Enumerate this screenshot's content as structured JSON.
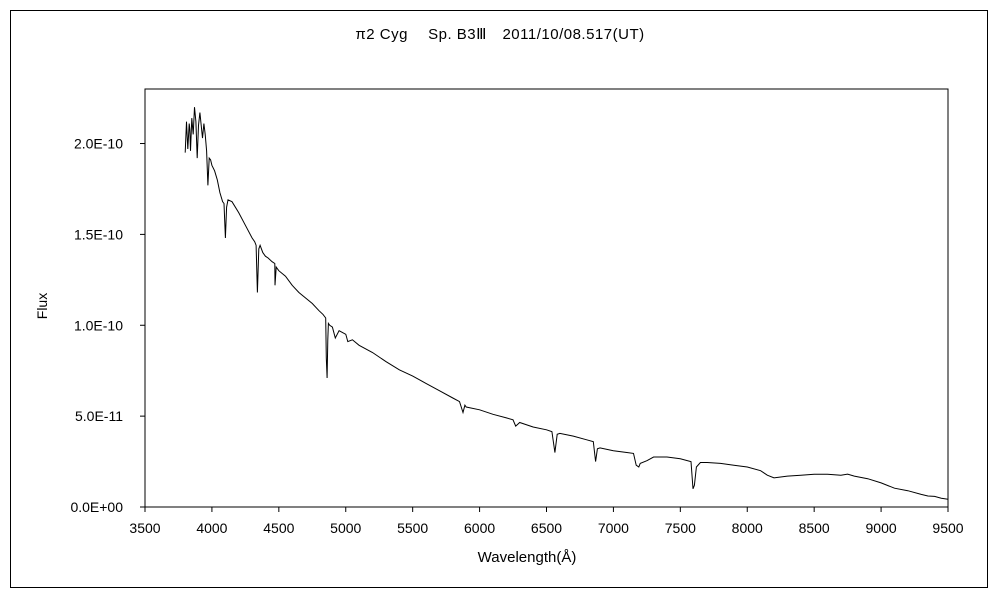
{
  "chart_data": {
    "type": "line",
    "title": "π2 Cyg　 Sp. B3Ⅲ　2011/10/08.517(UT)",
    "xlabel": "Wavelength(Å)",
    "ylabel": "Flux",
    "xlim": [
      3500,
      9500
    ],
    "ylim": [
      0,
      2.3e-10
    ],
    "xticks": [
      3500,
      4000,
      4500,
      5000,
      5500,
      6000,
      6500,
      7000,
      7500,
      8000,
      8500,
      9000,
      9500
    ],
    "xtick_labels": [
      "3500",
      "4000",
      "4500",
      "5000",
      "5500",
      "6000",
      "6500",
      "7000",
      "7500",
      "8000",
      "8500",
      "9000",
      "9500"
    ],
    "yticks": [
      0,
      5e-11,
      1e-10,
      1.5e-10,
      2e-10
    ],
    "ytick_labels": [
      "0.0E+00",
      "5.0E-11",
      "1.0E-10",
      "1.5E-10",
      "2.0E-10"
    ],
    "grid": false,
    "legend": "none",
    "line_color": "#000000",
    "series": [
      {
        "x": [
          3800,
          3810,
          3820,
          3830,
          3835,
          3840,
          3850,
          3860,
          3870,
          3880,
          3890,
          3900,
          3910,
          3920,
          3930,
          3940,
          3950,
          3960,
          3970,
          3980,
          3990,
          4000,
          4020,
          4040,
          4060,
          4080,
          4090,
          4101,
          4110,
          4120,
          4150,
          4200,
          4250,
          4300,
          4320,
          4330,
          4340,
          4350,
          4360,
          4380,
          4400,
          4420,
          4450,
          4470,
          4471,
          4480,
          4500,
          4550,
          4600,
          4650,
          4700,
          4750,
          4800,
          4830,
          4850,
          4855,
          4861,
          4866,
          4870,
          4880,
          4900,
          4922,
          4950,
          5000,
          5015,
          5050,
          5100,
          5200,
          5300,
          5400,
          5500,
          5600,
          5700,
          5800,
          5850,
          5876,
          5890,
          5900,
          6000,
          6100,
          6200,
          6250,
          6270,
          6300,
          6400,
          6500,
          6540,
          6563,
          6580,
          6600,
          6700,
          6800,
          6850,
          6867,
          6880,
          6900,
          7000,
          7100,
          7150,
          7170,
          7190,
          7200,
          7250,
          7300,
          7400,
          7500,
          7580,
          7595,
          7605,
          7620,
          7650,
          7700,
          7800,
          7900,
          8000,
          8100,
          8150,
          8200,
          8300,
          8400,
          8500,
          8600,
          8700,
          8750,
          8800,
          8900,
          9000,
          9100,
          9200,
          9300,
          9350,
          9400,
          9450,
          9500
        ],
        "y": [
          1.95e-10,
          2.12e-10,
          1.97e-10,
          2.11e-10,
          2.08e-10,
          1.96e-10,
          2.14e-10,
          2.05e-10,
          2.2e-10,
          2.12e-10,
          1.92e-10,
          2.1e-10,
          2.17e-10,
          2.1e-10,
          2.03e-10,
          2.11e-10,
          2.05e-10,
          1.96e-10,
          1.77e-10,
          1.92e-10,
          1.91e-10,
          1.88e-10,
          1.85e-10,
          1.8e-10,
          1.73e-10,
          1.68e-10,
          1.67e-10,
          1.48e-10,
          1.65e-10,
          1.69e-10,
          1.68e-10,
          1.62e-10,
          1.55e-10,
          1.48e-10,
          1.46e-10,
          1.44e-10,
          1.18e-10,
          1.42e-10,
          1.44e-10,
          1.4e-10,
          1.38e-10,
          1.37e-10,
          1.35e-10,
          1.34e-10,
          1.22e-10,
          1.32e-10,
          1.3e-10,
          1.27e-10,
          1.22e-10,
          1.18e-10,
          1.15e-10,
          1.12e-10,
          1.08e-10,
          1.06e-10,
          1.04e-10,
          8.2e-11,
          7.1e-11,
          9.2e-11,
          1.01e-10,
          1e-10,
          9.9e-11,
          9.3e-11,
          9.7e-11,
          9.5e-11,
          9.1e-11,
          9.2e-11,
          8.9e-11,
          8.5e-11,
          8e-11,
          7.55e-11,
          7.2e-11,
          6.8e-11,
          6.4e-11,
          6e-11,
          5.8e-11,
          5.2e-11,
          5.6e-11,
          5.5e-11,
          5.35e-11,
          5.1e-11,
          4.9e-11,
          4.8e-11,
          4.45e-11,
          4.65e-11,
          4.4e-11,
          4.25e-11,
          4.15e-11,
          3e-11,
          4e-11,
          4.05e-11,
          3.9e-11,
          3.7e-11,
          3.6e-11,
          2.5e-11,
          3.2e-11,
          3.25e-11,
          3.1e-11,
          3e-11,
          2.95e-11,
          2.3e-11,
          2.2e-11,
          2.4e-11,
          2.55e-11,
          2.75e-11,
          2.75e-11,
          2.65e-11,
          2.5e-11,
          1e-11,
          1.2e-11,
          2.2e-11,
          2.45e-11,
          2.45e-11,
          2.4e-11,
          2.3e-11,
          2.2e-11,
          2e-11,
          1.75e-11,
          1.6e-11,
          1.7e-11,
          1.75e-11,
          1.8e-11,
          1.8e-11,
          1.75e-11,
          1.8e-11,
          1.7e-11,
          1.5e-11,
          1.3e-11,
          1.1e-11,
          9e-12,
          7.5e-12,
          6.5e-12,
          6e-12,
          5e-12,
          5e-12
        ]
      }
    ]
  }
}
